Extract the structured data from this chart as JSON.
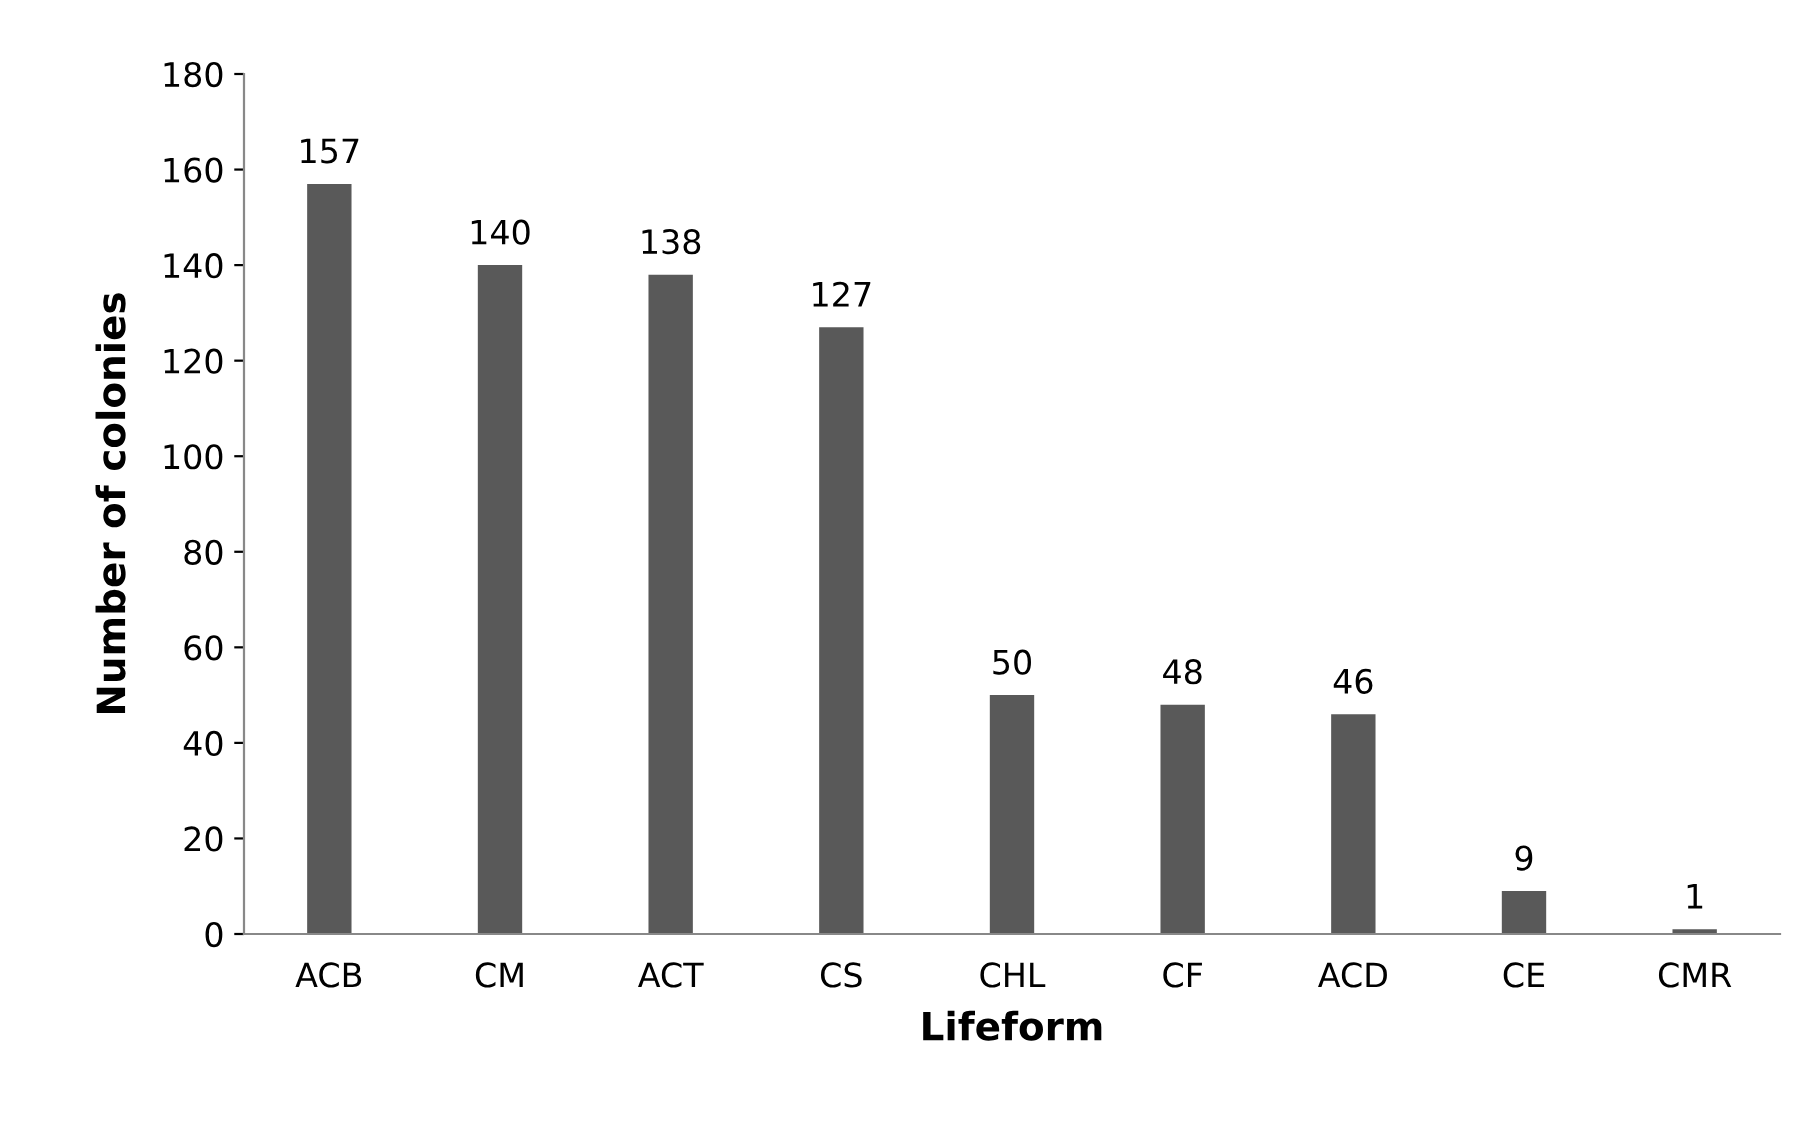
{
  "chart_data": {
    "type": "bar",
    "xlabel": "Lifeform",
    "ylabel": "Number of colonies",
    "categories": [
      "ACB",
      "CM",
      "ACT",
      "CS",
      "CHL",
      "CF",
      "ACD",
      "CE",
      "CMR"
    ],
    "values": [
      157,
      140,
      138,
      127,
      50,
      48,
      46,
      9,
      1
    ],
    "color": "#595959",
    "ylim": [
      0,
      180
    ],
    "yticks": [
      0,
      20,
      40,
      60,
      80,
      100,
      120,
      140,
      160,
      180
    ],
    "data_labels": true,
    "grid": false,
    "legend": false
  }
}
